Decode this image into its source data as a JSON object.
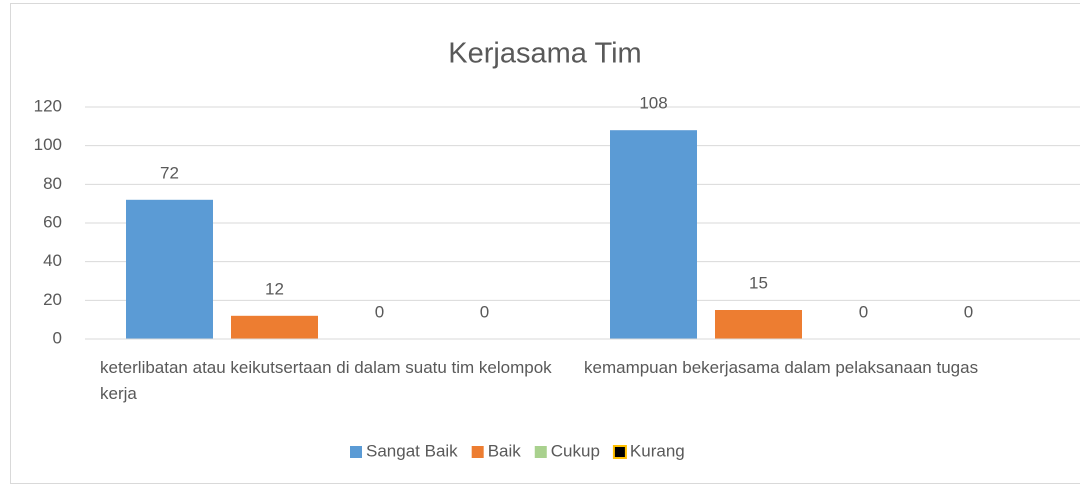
{
  "chart_data": {
    "type": "bar",
    "title": "Kerjasama Tim",
    "categories": [
      "keterlibatan atau keikutsertaan di dalam suatu tim kelompok kerja",
      "kemampuan bekerjasama dalam pelaksanaan tugas"
    ],
    "series": [
      {
        "name": "Sangat Baik",
        "color": "#5b9bd5",
        "values": [
          72,
          108
        ]
      },
      {
        "name": "Baik",
        "color": "#ed7d31",
        "values": [
          12,
          15
        ]
      },
      {
        "name": "Cukup",
        "color": "#a9d18e",
        "values": [
          0,
          0
        ]
      },
      {
        "name": "Kurang",
        "color": "#000000",
        "edgecolor": "#ffc000",
        "values": [
          0,
          0
        ]
      }
    ],
    "ylim": [
      0,
      120
    ],
    "yticks": [
      0,
      20,
      40,
      60,
      80,
      100,
      120
    ],
    "grid": true,
    "legend": "bottom"
  }
}
